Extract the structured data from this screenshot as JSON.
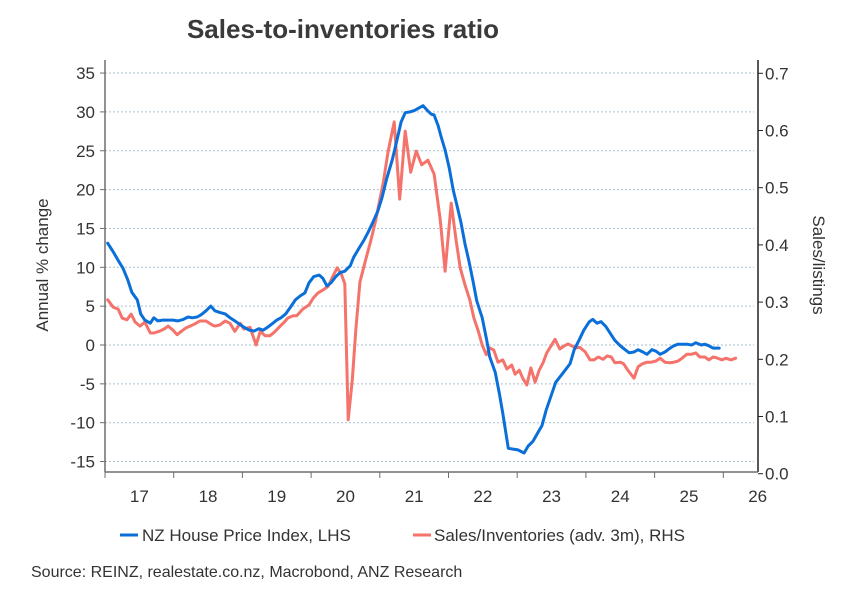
{
  "chart_data": {
    "type": "line",
    "title": "Sales-to-inventories ratio",
    "xlabel": "",
    "ylabel": "Annual % change",
    "ylabel_right": "Sales/listings",
    "xlim": [
      2017.0,
      2026.5
    ],
    "ylim": [
      -16.5,
      37
    ],
    "ylim_right": [
      0.0,
      0.72
    ],
    "x_ticks": [
      2017,
      2018,
      2019,
      2020,
      2021,
      2022,
      2023,
      2024,
      2025,
      2026
    ],
    "x_tick_labels": [
      "17",
      "18",
      "19",
      "20",
      "21",
      "22",
      "23",
      "24",
      "25",
      "26"
    ],
    "y_ticks": [
      35,
      30,
      25,
      20,
      15,
      10,
      5,
      0,
      -5,
      -10,
      -15
    ],
    "y_tick_labels": [
      "35",
      "30",
      "25",
      "20",
      "15",
      "10",
      "5",
      "0",
      "-5",
      "-10",
      "-15"
    ],
    "y_right_ticks": [
      0.7,
      0.6,
      0.5,
      0.4,
      0.3,
      0.2,
      0.1,
      0.0
    ],
    "y_right_tick_labels": [
      "0.7",
      "0.6",
      "0.5",
      "0.4",
      "0.3",
      "0.2",
      "0.1",
      "0.0"
    ],
    "grid": true,
    "legend_position": "bottom",
    "source": "Source: REINZ, realestate.co.nz, Macrobond, ANZ Research",
    "series": [
      {
        "name": "NZ House Price Index, LHS",
        "axis": "left",
        "color": "#0a6fd9",
        "x": [
          2017.04,
          2017.12,
          2017.19,
          2017.26,
          2017.33,
          2017.39,
          2017.47,
          2017.52,
          2017.58,
          2017.66,
          2017.71,
          2017.77,
          2017.84,
          2017.92,
          2017.99,
          2018.06,
          2018.14,
          2018.21,
          2018.27,
          2018.34,
          2018.4,
          2018.47,
          2018.54,
          2018.6,
          2018.67,
          2018.75,
          2018.82,
          2018.89,
          2018.97,
          2019.02,
          2019.1,
          2019.17,
          2019.24,
          2019.3,
          2019.37,
          2019.43,
          2019.5,
          2019.56,
          2019.63,
          2019.71,
          2019.77,
          2019.84,
          2019.91,
          2019.97,
          2020.04,
          2020.12,
          2020.17,
          2020.23,
          2020.29,
          2020.36,
          2020.42,
          2020.49,
          2020.57,
          2020.62,
          2020.7,
          2020.77,
          2020.83,
          2020.9,
          2020.97,
          2021.03,
          2021.1,
          2021.18,
          2021.25,
          2021.31,
          2021.37,
          2021.44,
          2021.51,
          2021.59,
          2021.63,
          2021.69,
          2021.75,
          2021.79,
          2021.85,
          2021.89,
          2021.95,
          2022.01,
          2022.07,
          2022.12,
          2022.18,
          2022.24,
          2022.3,
          2022.36,
          2022.41,
          2022.49,
          2022.55,
          2022.6,
          2022.68,
          2022.74,
          2022.79,
          2022.87,
          2022.94,
          2023.01,
          2023.1,
          2023.16,
          2023.23,
          2023.3,
          2023.36,
          2023.42,
          2023.49,
          2023.56,
          2023.64,
          2023.71,
          2023.77,
          2023.83,
          2023.9,
          2023.97,
          2024.05,
          2024.1,
          2024.16,
          2024.22,
          2024.29,
          2024.37,
          2024.42,
          2024.5,
          2024.57,
          2024.63,
          2024.7,
          2024.76,
          2024.83,
          2024.89,
          2024.96,
          2025.02,
          2025.08,
          2025.15,
          2025.21,
          2025.28,
          2025.34,
          2025.41,
          2025.47,
          2025.54,
          2025.6,
          2025.68,
          2025.73,
          2025.79,
          2025.85,
          2025.94
        ],
        "values": [
          13.1,
          12.0,
          10.9,
          9.9,
          8.4,
          6.8,
          5.8,
          4.0,
          3.2,
          2.8,
          3.5,
          3.1,
          3.2,
          3.2,
          3.2,
          3.1,
          3.3,
          3.6,
          3.5,
          3.6,
          3.9,
          4.4,
          5.0,
          4.4,
          4.2,
          4.0,
          3.5,
          3.1,
          2.6,
          2.3,
          1.9,
          1.8,
          2.1,
          1.9,
          2.3,
          2.7,
          3.2,
          3.5,
          4.0,
          5.0,
          5.8,
          6.3,
          6.7,
          8.0,
          8.8,
          9.0,
          8.6,
          7.6,
          8.0,
          8.8,
          9.3,
          9.5,
          10.2,
          11.3,
          12.5,
          13.5,
          14.5,
          15.8,
          17.2,
          18.9,
          21.4,
          23.8,
          26.4,
          28.7,
          29.9,
          30.0,
          30.2,
          30.6,
          30.8,
          30.2,
          29.7,
          29.6,
          28.2,
          26.9,
          25.1,
          22.8,
          19.9,
          18.1,
          15.8,
          13.0,
          10.7,
          8.1,
          5.7,
          3.5,
          0.9,
          -1.5,
          -3.5,
          -6.2,
          -8.8,
          -13.3,
          -13.4,
          -13.5,
          -13.9,
          -13.0,
          -12.4,
          -11.3,
          -10.4,
          -8.4,
          -6.6,
          -4.8,
          -3.9,
          -3.1,
          -2.4,
          -0.6,
          0.6,
          1.9,
          3.0,
          3.3,
          2.8,
          3.0,
          2.4,
          1.3,
          0.6,
          -0.1,
          -0.6,
          -1.0,
          -0.9,
          -0.6,
          -0.9,
          -1.2,
          -0.6,
          -0.8,
          -1.2,
          -0.9,
          -0.5,
          -0.1,
          0.1,
          0.1,
          0.1,
          0.0,
          0.3,
          0.0,
          0.1,
          -0.1,
          -0.4,
          -0.4
        ]
      },
      {
        "name": "Sales/Inventories (adv. 3m), RHS",
        "axis": "right",
        "color": "#f4736b",
        "x": [
          2017.04,
          2017.12,
          2017.19,
          2017.25,
          2017.32,
          2017.38,
          2017.44,
          2017.51,
          2017.58,
          2017.66,
          2017.71,
          2017.79,
          2017.86,
          2017.92,
          2017.99,
          2018.05,
          2018.11,
          2018.18,
          2018.24,
          2018.31,
          2018.38,
          2018.47,
          2018.56,
          2018.6,
          2018.67,
          2018.75,
          2018.82,
          2018.89,
          2018.97,
          2019.02,
          2019.11,
          2019.2,
          2019.26,
          2019.33,
          2019.4,
          2019.47,
          2019.55,
          2019.61,
          2019.66,
          2019.74,
          2019.79,
          2019.88,
          2019.97,
          2020.03,
          2020.1,
          2020.17,
          2020.25,
          2020.32,
          2020.38,
          2020.44,
          2020.49,
          2020.54,
          2020.6,
          2020.65,
          2020.71,
          2020.8,
          2020.87,
          2020.94,
          2021.0,
          2021.05,
          2021.12,
          2021.21,
          2021.29,
          2021.37,
          2021.45,
          2021.53,
          2021.61,
          2021.7,
          2021.79,
          2021.88,
          2021.95,
          2022.04,
          2022.11,
          2022.17,
          2022.24,
          2022.31,
          2022.37,
          2022.43,
          2022.49,
          2022.55,
          2022.6,
          2022.66,
          2022.72,
          2022.79,
          2022.85,
          2022.92,
          2022.97,
          2023.03,
          2023.08,
          2023.14,
          2023.2,
          2023.26,
          2023.32,
          2023.38,
          2023.43,
          2023.49,
          2023.55,
          2023.62,
          2023.68,
          2023.74,
          2023.8,
          2023.86,
          2023.91,
          2023.99,
          2024.06,
          2024.12,
          2024.18,
          2024.25,
          2024.31,
          2024.37,
          2024.42,
          2024.5,
          2024.55,
          2024.61,
          2024.7,
          2024.76,
          2024.82,
          2024.89,
          2024.95,
          2025.02,
          2025.08,
          2025.15,
          2025.22,
          2025.28,
          2025.34,
          2025.4,
          2025.47,
          2025.54,
          2025.6,
          2025.66,
          2025.73,
          2025.79,
          2025.85,
          2025.92,
          2025.98,
          2026.04,
          2026.11,
          2026.18
        ],
        "values": [
          0.304,
          0.291,
          0.288,
          0.272,
          0.269,
          0.279,
          0.265,
          0.258,
          0.265,
          0.246,
          0.246,
          0.249,
          0.253,
          0.258,
          0.251,
          0.243,
          0.249,
          0.255,
          0.258,
          0.262,
          0.267,
          0.267,
          0.26,
          0.258,
          0.26,
          0.267,
          0.263,
          0.249,
          0.263,
          0.253,
          0.256,
          0.225,
          0.249,
          0.241,
          0.241,
          0.248,
          0.258,
          0.265,
          0.272,
          0.276,
          0.276,
          0.288,
          0.295,
          0.307,
          0.316,
          0.321,
          0.328,
          0.346,
          0.36,
          0.349,
          0.332,
          0.094,
          0.164,
          0.251,
          0.335,
          0.377,
          0.408,
          0.443,
          0.479,
          0.508,
          0.562,
          0.615,
          0.48,
          0.599,
          0.527,
          0.564,
          0.54,
          0.548,
          0.524,
          0.443,
          0.354,
          0.473,
          0.408,
          0.36,
          0.33,
          0.304,
          0.272,
          0.251,
          0.225,
          0.208,
          0.22,
          0.216,
          0.195,
          0.199,
          0.183,
          0.19,
          0.174,
          0.181,
          0.167,
          0.155,
          0.185,
          0.16,
          0.181,
          0.195,
          0.211,
          0.223,
          0.235,
          0.218,
          0.223,
          0.227,
          0.223,
          0.22,
          0.221,
          0.213,
          0.199,
          0.199,
          0.204,
          0.2,
          0.206,
          0.204,
          0.194,
          0.195,
          0.192,
          0.181,
          0.167,
          0.187,
          0.192,
          0.195,
          0.195,
          0.197,
          0.202,
          0.195,
          0.194,
          0.195,
          0.197,
          0.202,
          0.209,
          0.209,
          0.211,
          0.204,
          0.204,
          0.199,
          0.204,
          0.202,
          0.199,
          0.202,
          0.199,
          0.202
        ]
      }
    ]
  }
}
